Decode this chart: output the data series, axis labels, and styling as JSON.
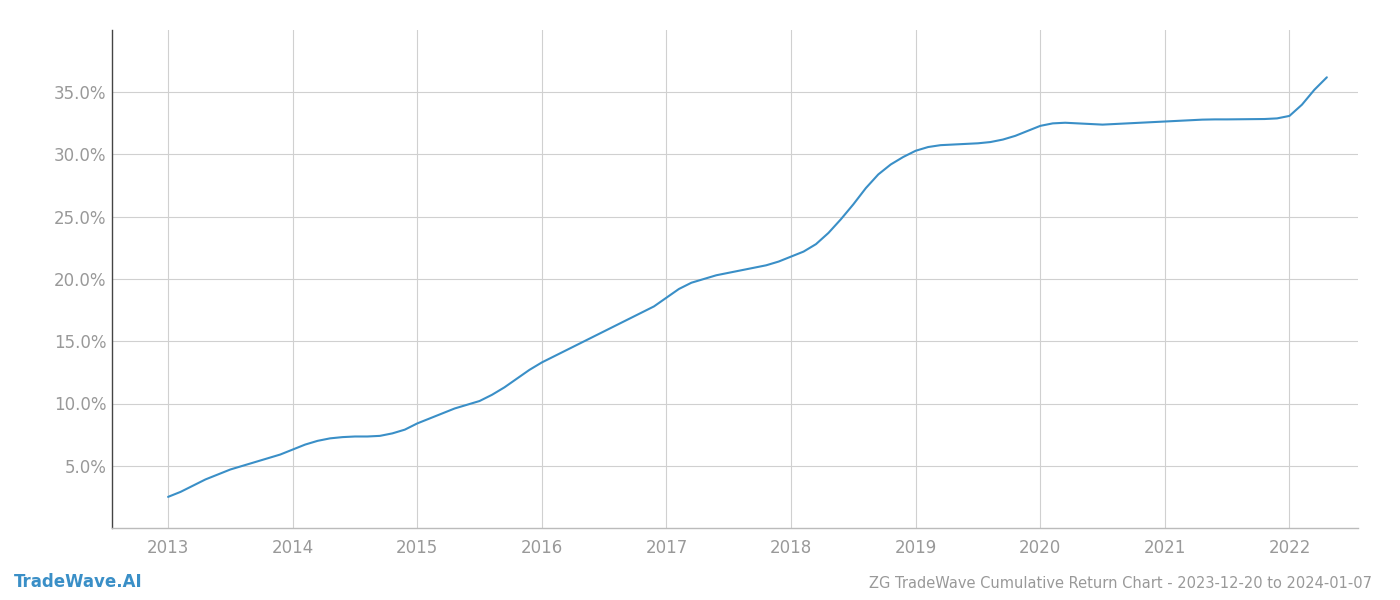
{
  "title": "ZG TradeWave Cumulative Return Chart - 2023-12-20 to 2024-01-07",
  "watermark": "TradeWave.AI",
  "line_color": "#3a8fc7",
  "background_color": "#ffffff",
  "grid_color": "#d0d0d0",
  "x_years": [
    2013,
    2014,
    2015,
    2016,
    2017,
    2018,
    2019,
    2020,
    2021,
    2022
  ],
  "x_values": [
    2013.0,
    2013.1,
    2013.2,
    2013.3,
    2013.4,
    2013.5,
    2013.6,
    2013.7,
    2013.8,
    2013.9,
    2014.0,
    2014.1,
    2014.2,
    2014.3,
    2014.4,
    2014.5,
    2014.6,
    2014.7,
    2014.8,
    2014.9,
    2015.0,
    2015.1,
    2015.2,
    2015.3,
    2015.4,
    2015.5,
    2015.6,
    2015.7,
    2015.8,
    2015.9,
    2016.0,
    2016.1,
    2016.2,
    2016.3,
    2016.4,
    2016.5,
    2016.6,
    2016.7,
    2016.8,
    2016.9,
    2017.0,
    2017.1,
    2017.2,
    2017.3,
    2017.4,
    2017.5,
    2017.6,
    2017.7,
    2017.8,
    2017.9,
    2018.0,
    2018.1,
    2018.2,
    2018.3,
    2018.4,
    2018.5,
    2018.6,
    2018.7,
    2018.8,
    2018.9,
    2019.0,
    2019.1,
    2019.2,
    2019.3,
    2019.4,
    2019.5,
    2019.6,
    2019.7,
    2019.8,
    2019.9,
    2020.0,
    2020.1,
    2020.2,
    2020.3,
    2020.4,
    2020.5,
    2020.6,
    2020.7,
    2020.8,
    2020.9,
    2021.0,
    2021.1,
    2021.2,
    2021.3,
    2021.4,
    2021.5,
    2021.6,
    2021.7,
    2021.8,
    2021.9,
    2022.0,
    2022.1,
    2022.2,
    2022.3
  ],
  "y_values": [
    2.5,
    2.9,
    3.4,
    3.9,
    4.3,
    4.7,
    5.0,
    5.3,
    5.6,
    5.9,
    6.3,
    6.7,
    7.0,
    7.2,
    7.3,
    7.35,
    7.35,
    7.4,
    7.6,
    7.9,
    8.4,
    8.8,
    9.2,
    9.6,
    9.9,
    10.2,
    10.7,
    11.3,
    12.0,
    12.7,
    13.3,
    13.8,
    14.3,
    14.8,
    15.3,
    15.8,
    16.3,
    16.8,
    17.3,
    17.8,
    18.5,
    19.2,
    19.7,
    20.0,
    20.3,
    20.5,
    20.7,
    20.9,
    21.1,
    21.4,
    21.8,
    22.2,
    22.8,
    23.7,
    24.8,
    26.0,
    27.3,
    28.4,
    29.2,
    29.8,
    30.3,
    30.6,
    30.75,
    30.8,
    30.85,
    30.9,
    31.0,
    31.2,
    31.5,
    31.9,
    32.3,
    32.5,
    32.55,
    32.5,
    32.45,
    32.4,
    32.45,
    32.5,
    32.55,
    32.6,
    32.65,
    32.7,
    32.75,
    32.8,
    32.82,
    32.82,
    32.83,
    32.84,
    32.85,
    32.9,
    33.1,
    34.0,
    35.2,
    36.2
  ],
  "ylim": [
    0,
    40
  ],
  "yticks": [
    5.0,
    10.0,
    15.0,
    20.0,
    25.0,
    30.0,
    35.0
  ],
  "xlim_left": 2012.55,
  "xlim_right": 2022.55,
  "tick_label_color": "#999999",
  "spine_color": "#bbbbbb",
  "left_spine_color": "#444444",
  "title_fontsize": 10.5,
  "watermark_fontsize": 12,
  "tick_fontsize": 12
}
